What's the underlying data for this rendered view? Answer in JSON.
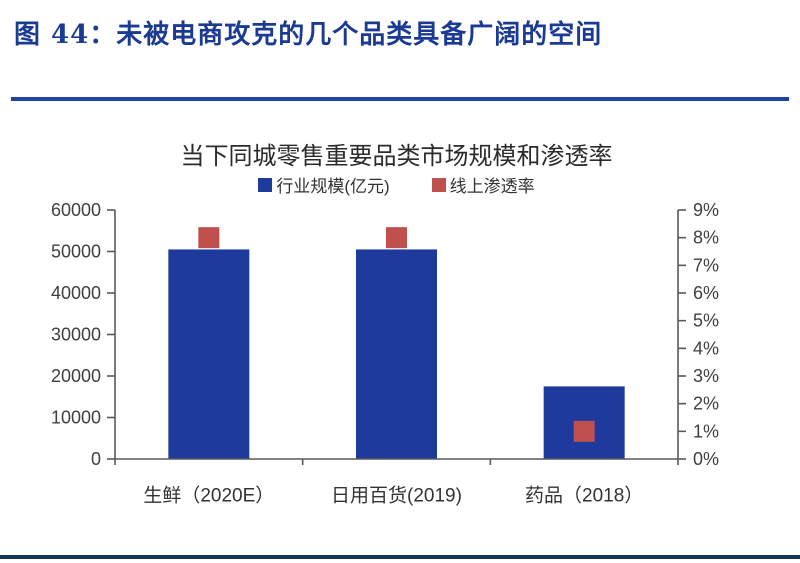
{
  "figure_header": {
    "label": "图 44：",
    "title": "未被电商攻克的几个品类具备广阔的空间"
  },
  "chart_data": {
    "type": "bar",
    "title": "当下同城零售重要品类市场规模和渗透率",
    "categories": [
      "生鲜（2020E）",
      "日用百货(2019)",
      "药品（2018）"
    ],
    "series": [
      {
        "name": "行业规模(亿元)",
        "type": "bar",
        "axis": "left",
        "color": "#1e3a9c",
        "values": [
          50500,
          50500,
          17500
        ]
      },
      {
        "name": "线上渗透率",
        "type": "square-marker",
        "axis": "right",
        "color": "#c0504d",
        "values": [
          8,
          8,
          1
        ],
        "unit": "%"
      }
    ],
    "left_axis": {
      "min": 0,
      "max": 60000,
      "step": 10000,
      "ticks": [
        "0",
        "10000",
        "20000",
        "30000",
        "40000",
        "50000",
        "60000"
      ]
    },
    "right_axis": {
      "min": 0,
      "max": 9,
      "step": 1,
      "ticks": [
        "0%",
        "1%",
        "2%",
        "3%",
        "4%",
        "5%",
        "6%",
        "7%",
        "8%",
        "9%"
      ]
    },
    "legend_position": "top",
    "grid": false
  },
  "colors": {
    "header_text": "#1b3a94",
    "header_rule": "#1d429f",
    "bottom_rule": "#17365d",
    "axis_line": "#595959",
    "tick_label": "#3f3f3f",
    "chart_title": "#2b2b2b"
  }
}
